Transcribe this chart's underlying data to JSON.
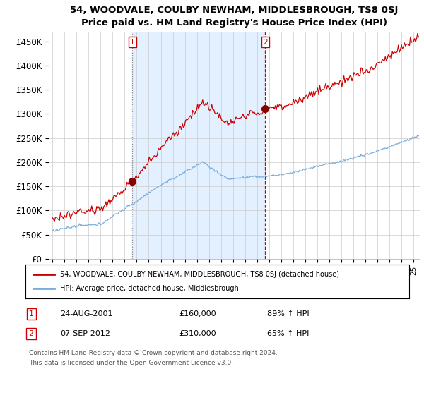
{
  "title": "54, WOODVALE, COULBY NEWHAM, MIDDLESBROUGH, TS8 0SJ",
  "subtitle": "Price paid vs. HM Land Registry's House Price Index (HPI)",
  "ylabel_ticks": [
    "£0",
    "£50K",
    "£100K",
    "£150K",
    "£200K",
    "£250K",
    "£300K",
    "£350K",
    "£400K",
    "£450K"
  ],
  "ylim": [
    0,
    470000
  ],
  "xlim_start": 1994.7,
  "xlim_end": 2025.5,
  "sale1_date": 2001.65,
  "sale1_price": 160000,
  "sale1_label": "1",
  "sale2_date": 2012.68,
  "sale2_price": 310000,
  "sale2_label": "2",
  "legend_entry1": "54, WOODVALE, COULBY NEWHAM, MIDDLESBROUGH, TS8 0SJ (detached house)",
  "legend_entry2": "HPI: Average price, detached house, Middlesbrough",
  "table_row1": [
    "1",
    "24-AUG-2001",
    "£160,000",
    "89% ↑ HPI"
  ],
  "table_row2": [
    "2",
    "07-SEP-2012",
    "£310,000",
    "65% ↑ HPI"
  ],
  "footnote1": "Contains HM Land Registry data © Crown copyright and database right 2024.",
  "footnote2": "This data is licensed under the Open Government Licence v3.0.",
  "hpi_color": "#7aaddb",
  "price_color": "#cc0000",
  "sale_marker_color": "#880000",
  "vline1_color": "#888888",
  "vline2_color": "#cc0000",
  "shade_color": "#ddeeff",
  "background_color": "#ffffff",
  "grid_color": "#cccccc"
}
